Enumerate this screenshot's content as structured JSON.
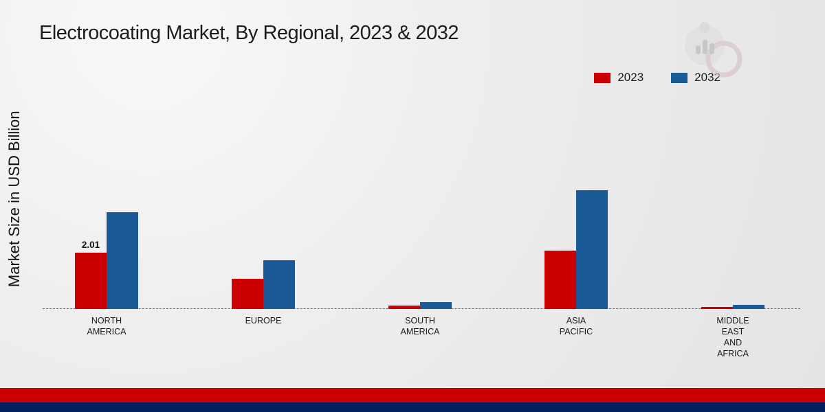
{
  "title": "Electrocoating Market, By Regional, 2023 & 2032",
  "ylabel": "Market Size in USD Billion",
  "legend": [
    {
      "label": "2023",
      "color": "#cc0000"
    },
    {
      "label": "2032",
      "color": "#1a5a96"
    }
  ],
  "chart_data": {
    "type": "bar",
    "title": "Electrocoating Market, By Regional, 2023 & 2032",
    "xlabel": "",
    "ylabel": "Market Size in USD Billion",
    "categories": [
      "NORTH AMERICA",
      "EUROPE",
      "SOUTH AMERICA",
      "ASIA PACIFIC",
      "MIDDLE EAST AND AFRICA"
    ],
    "category_label_lines": [
      [
        "NORTH",
        "AMERICA"
      ],
      [
        "EUROPE"
      ],
      [
        "SOUTH",
        "AMERICA"
      ],
      [
        "ASIA",
        "PACIFIC"
      ],
      [
        "MIDDLE",
        "EAST",
        "AND",
        "AFRICA"
      ]
    ],
    "series": [
      {
        "name": "2023",
        "color": "#cc0000",
        "values": [
          2.01,
          1.08,
          0.12,
          2.08,
          0.07
        ]
      },
      {
        "name": "2032",
        "color": "#1a5a96",
        "values": [
          3.43,
          1.74,
          0.25,
          4.22,
          0.15
        ]
      }
    ],
    "value_labels": [
      {
        "series": "2023",
        "category": "NORTH AMERICA",
        "text": "2.01"
      }
    ],
    "ylim": [
      0,
      4.5
    ],
    "grid": false,
    "baseline_style": "dashed",
    "legend_position": "top-right"
  },
  "footer": {
    "red_stripe_color": "#cc0000",
    "navy_stripe_color": "#002060"
  },
  "watermark": "market-research-logo"
}
